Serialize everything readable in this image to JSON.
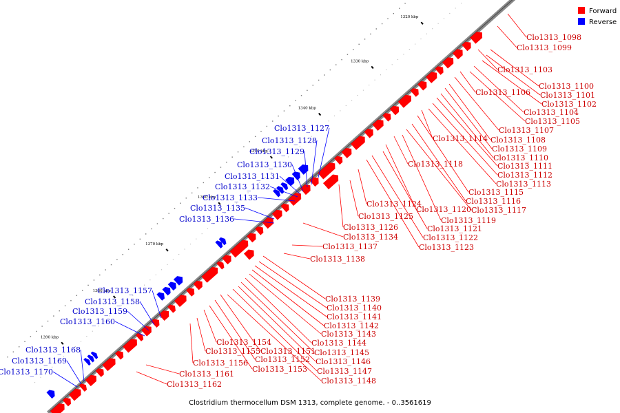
{
  "caption": "Clostridium thermocellum DSM 1313, complete genome. - 0..3561619",
  "legend": [
    {
      "label": "Forward",
      "color": "#ff0000"
    },
    {
      "label": "Reverse",
      "color": "#0000ff"
    }
  ],
  "ticks": [
    "1320 kbp",
    "1330 kbp",
    "1340 kbp",
    "1350 kbp",
    "1360 kbp",
    "1370 kbp",
    "1380 kbp",
    "1390 kbp"
  ],
  "genes": [
    {
      "name": "Clo1313_1098",
      "strand": "F"
    },
    {
      "name": "Clo1313_1099",
      "strand": "F"
    },
    {
      "name": "Clo1313_1100",
      "strand": "F"
    },
    {
      "name": "Clo1313_1101",
      "strand": "F"
    },
    {
      "name": "Clo1313_1102",
      "strand": "F"
    },
    {
      "name": "Clo1313_1103",
      "strand": "F"
    },
    {
      "name": "Clo1313_1104",
      "strand": "F"
    },
    {
      "name": "Clo1313_1105",
      "strand": "F"
    },
    {
      "name": "Clo1313_1106",
      "strand": "F"
    },
    {
      "name": "Clo1313_1107",
      "strand": "F"
    },
    {
      "name": "Clo1313_1108",
      "strand": "F"
    },
    {
      "name": "Clo1313_1109",
      "strand": "F"
    },
    {
      "name": "Clo1313_1110",
      "strand": "F"
    },
    {
      "name": "Clo1313_1111",
      "strand": "F"
    },
    {
      "name": "Clo1313_1112",
      "strand": "F"
    },
    {
      "name": "Clo1313_1113",
      "strand": "F"
    },
    {
      "name": "Clo1313_1114",
      "strand": "F"
    },
    {
      "name": "Clo1313_1115",
      "strand": "F"
    },
    {
      "name": "Clo1313_1116",
      "strand": "F"
    },
    {
      "name": "Clo1313_1117",
      "strand": "F"
    },
    {
      "name": "Clo1313_1118",
      "strand": "F"
    },
    {
      "name": "Clo1313_1119",
      "strand": "F"
    },
    {
      "name": "Clo1313_1120",
      "strand": "F"
    },
    {
      "name": "Clo1313_1121",
      "strand": "F"
    },
    {
      "name": "Clo1313_1122",
      "strand": "F"
    },
    {
      "name": "Clo1313_1123",
      "strand": "F"
    },
    {
      "name": "Clo1313_1124",
      "strand": "F"
    },
    {
      "name": "Clo1313_1125",
      "strand": "F"
    },
    {
      "name": "Clo1313_1126",
      "strand": "F"
    },
    {
      "name": "Clo1313_1127",
      "strand": "R"
    },
    {
      "name": "Clo1313_1128",
      "strand": "R"
    },
    {
      "name": "Clo1313_1129",
      "strand": "R"
    },
    {
      "name": "Clo1313_1130",
      "strand": "R"
    },
    {
      "name": "Clo1313_1131",
      "strand": "R"
    },
    {
      "name": "Clo1313_1132",
      "strand": "R"
    },
    {
      "name": "Clo1313_1133",
      "strand": "R"
    },
    {
      "name": "Clo1313_1134",
      "strand": "F"
    },
    {
      "name": "Clo1313_1135",
      "strand": "R"
    },
    {
      "name": "Clo1313_1136",
      "strand": "R"
    },
    {
      "name": "Clo1313_1137",
      "strand": "F"
    },
    {
      "name": "Clo1313_1138",
      "strand": "F"
    },
    {
      "name": "Clo1313_1139",
      "strand": "F"
    },
    {
      "name": "Clo1313_1140",
      "strand": "F"
    },
    {
      "name": "Clo1313_1141",
      "strand": "F"
    },
    {
      "name": "Clo1313_1142",
      "strand": "F"
    },
    {
      "name": "Clo1313_1143",
      "strand": "F"
    },
    {
      "name": "Clo1313_1144",
      "strand": "F"
    },
    {
      "name": "Clo1313_1145",
      "strand": "F"
    },
    {
      "name": "Clo1313_1146",
      "strand": "F"
    },
    {
      "name": "Clo1313_1147",
      "strand": "F"
    },
    {
      "name": "Clo1313_1148",
      "strand": "F"
    },
    {
      "name": "Clo1313_1151",
      "strand": "F"
    },
    {
      "name": "Clo1313_1152",
      "strand": "F"
    },
    {
      "name": "Clo1313_1153",
      "strand": "F"
    },
    {
      "name": "Clo1313_1154",
      "strand": "F"
    },
    {
      "name": "Clo1313_1155",
      "strand": "F"
    },
    {
      "name": "Clo1313_1156",
      "strand": "F"
    },
    {
      "name": "Clo1313_1157",
      "strand": "R"
    },
    {
      "name": "Clo1313_1158",
      "strand": "R"
    },
    {
      "name": "Clo1313_1159",
      "strand": "R"
    },
    {
      "name": "Clo1313_1160",
      "strand": "R"
    },
    {
      "name": "Clo1313_1161",
      "strand": "F"
    },
    {
      "name": "Clo1313_1162",
      "strand": "F"
    },
    {
      "name": "Clo1313_1168",
      "strand": "R"
    },
    {
      "name": "Clo1313_1169",
      "strand": "R"
    },
    {
      "name": "Clo1313_1170",
      "strand": "R"
    }
  ]
}
